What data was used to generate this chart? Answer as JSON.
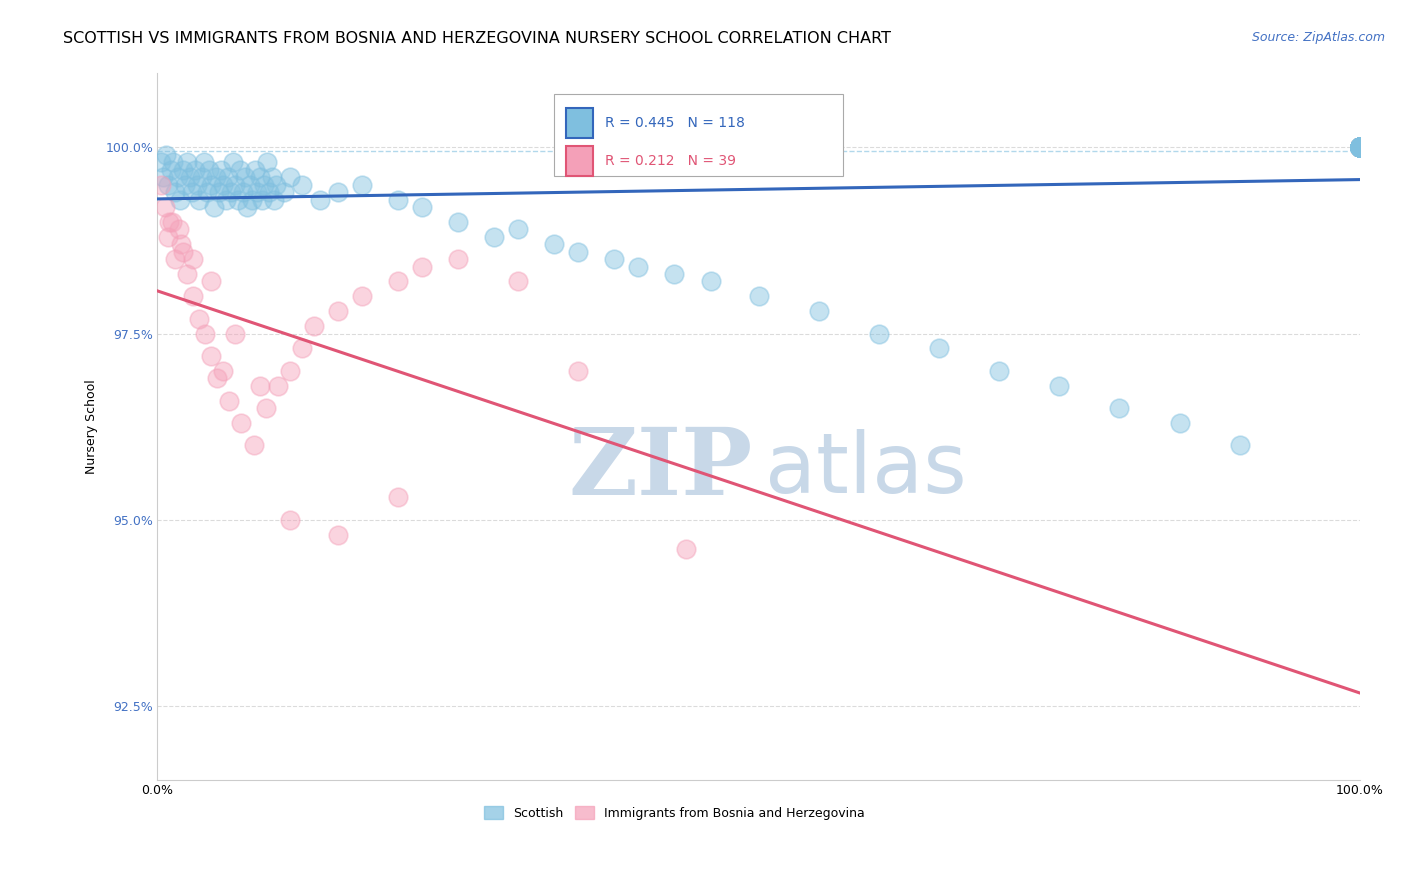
{
  "title": "SCOTTISH VS IMMIGRANTS FROM BOSNIA AND HERZEGOVINA NURSERY SCHOOL CORRELATION CHART",
  "source": "Source: ZipAtlas.com",
  "ylabel": "Nursery School",
  "xlim": [
    0,
    100
  ],
  "ylim": [
    91.5,
    101.0
  ],
  "yticks": [
    92.5,
    95.0,
    97.5,
    100.0
  ],
  "ytick_labels": [
    "92.5%",
    "95.0%",
    "97.5%",
    "100.0%"
  ],
  "legend_blue_r": "0.445",
  "legend_blue_n": "118",
  "legend_pink_r": "0.212",
  "legend_pink_n": "39",
  "legend_label_blue": "Scottish",
  "legend_label_pink": "Immigrants from Bosnia and Herzegovina",
  "blue_scatter_color": "#7fbfdf",
  "pink_scatter_color": "#f4a0b8",
  "blue_line_color": "#3366bb",
  "pink_line_color": "#e05575",
  "background_color": "#ffffff",
  "grid_color": "#cccccc",
  "title_fontsize": 11.5,
  "axis_label_fontsize": 9,
  "tick_fontsize": 9,
  "source_fontsize": 9,
  "watermark_zip_color": "#c8d8e8",
  "watermark_atlas_color": "#c8d8e8",
  "axis_color": "#4472c4",
  "scatter_size": 180,
  "scatter_alpha": 0.45,
  "scatter_lw": 1.2,
  "blue_scatter_x": [
    0.3,
    0.5,
    0.7,
    0.9,
    1.1,
    1.3,
    1.5,
    1.7,
    1.9,
    2.1,
    2.3,
    2.5,
    2.7,
    2.9,
    3.1,
    3.3,
    3.5,
    3.7,
    3.9,
    4.1,
    4.3,
    4.5,
    4.7,
    4.9,
    5.1,
    5.3,
    5.5,
    5.7,
    5.9,
    6.1,
    6.3,
    6.5,
    6.7,
    6.9,
    7.1,
    7.3,
    7.5,
    7.7,
    7.9,
    8.1,
    8.3,
    8.5,
    8.7,
    8.9,
    9.1,
    9.3,
    9.5,
    9.7,
    9.9,
    10.5,
    11.0,
    12.0,
    13.5,
    15.0,
    17.0,
    20.0,
    22.0,
    25.0,
    28.0,
    30.0,
    33.0,
    35.0,
    38.0,
    40.0,
    43.0,
    46.0,
    50.0,
    55.0,
    60.0,
    65.0,
    70.0,
    75.0,
    80.0,
    85.0,
    90.0,
    100.0,
    100.0,
    100.0,
    100.0,
    100.0,
    100.0,
    100.0,
    100.0,
    100.0,
    100.0,
    100.0,
    100.0,
    100.0,
    100.0,
    100.0,
    100.0,
    100.0,
    100.0,
    100.0,
    100.0,
    100.0,
    100.0,
    100.0,
    100.0,
    100.0,
    100.0,
    100.0,
    100.0,
    100.0,
    100.0,
    100.0,
    100.0,
    100.0,
    100.0,
    100.0,
    100.0,
    100.0,
    100.0,
    100.0,
    100.0,
    100.0,
    100.0,
    100.0
  ],
  "blue_scatter_y": [
    99.8,
    99.6,
    99.9,
    99.5,
    99.7,
    99.8,
    99.4,
    99.6,
    99.3,
    99.7,
    99.5,
    99.8,
    99.6,
    99.4,
    99.7,
    99.5,
    99.3,
    99.6,
    99.8,
    99.4,
    99.7,
    99.5,
    99.2,
    99.6,
    99.4,
    99.7,
    99.5,
    99.3,
    99.6,
    99.4,
    99.8,
    99.5,
    99.3,
    99.7,
    99.4,
    99.6,
    99.2,
    99.5,
    99.3,
    99.7,
    99.4,
    99.6,
    99.3,
    99.5,
    99.8,
    99.4,
    99.6,
    99.3,
    99.5,
    99.4,
    99.6,
    99.5,
    99.3,
    99.4,
    99.5,
    99.3,
    99.2,
    99.0,
    98.8,
    98.9,
    98.7,
    98.6,
    98.5,
    98.4,
    98.3,
    98.2,
    98.0,
    97.8,
    97.5,
    97.3,
    97.0,
    96.8,
    96.5,
    96.3,
    96.0,
    100.0,
    100.0,
    100.0,
    100.0,
    100.0,
    100.0,
    100.0,
    100.0,
    100.0,
    100.0,
    100.0,
    100.0,
    100.0,
    100.0,
    100.0,
    100.0,
    100.0,
    100.0,
    100.0,
    100.0,
    100.0,
    100.0,
    100.0,
    100.0,
    100.0,
    100.0,
    100.0,
    100.0,
    100.0,
    100.0,
    100.0,
    100.0,
    100.0,
    100.0,
    100.0,
    100.0,
    100.0,
    100.0,
    100.0,
    100.0,
    100.0,
    100.0,
    100.0
  ],
  "pink_scatter_x": [
    0.3,
    0.6,
    0.9,
    1.2,
    1.5,
    1.8,
    2.1,
    2.5,
    3.0,
    3.5,
    4.0,
    4.5,
    5.0,
    5.5,
    6.0,
    7.0,
    8.0,
    9.0,
    10.0,
    11.0,
    12.0,
    13.0,
    15.0,
    17.0,
    20.0,
    22.0,
    25.0,
    30.0,
    35.0,
    44.0,
    1.0,
    2.0,
    3.0,
    4.5,
    6.5,
    8.5,
    11.0,
    15.0,
    20.0
  ],
  "pink_scatter_y": [
    99.5,
    99.2,
    98.8,
    99.0,
    98.5,
    98.9,
    98.6,
    98.3,
    98.0,
    97.7,
    97.5,
    97.2,
    96.9,
    97.0,
    96.6,
    96.3,
    96.0,
    96.5,
    96.8,
    97.0,
    97.3,
    97.6,
    97.8,
    98.0,
    98.2,
    98.4,
    98.5,
    98.2,
    97.0,
    94.6,
    99.0,
    98.7,
    98.5,
    98.2,
    97.5,
    96.8,
    95.0,
    94.8,
    95.3
  ]
}
